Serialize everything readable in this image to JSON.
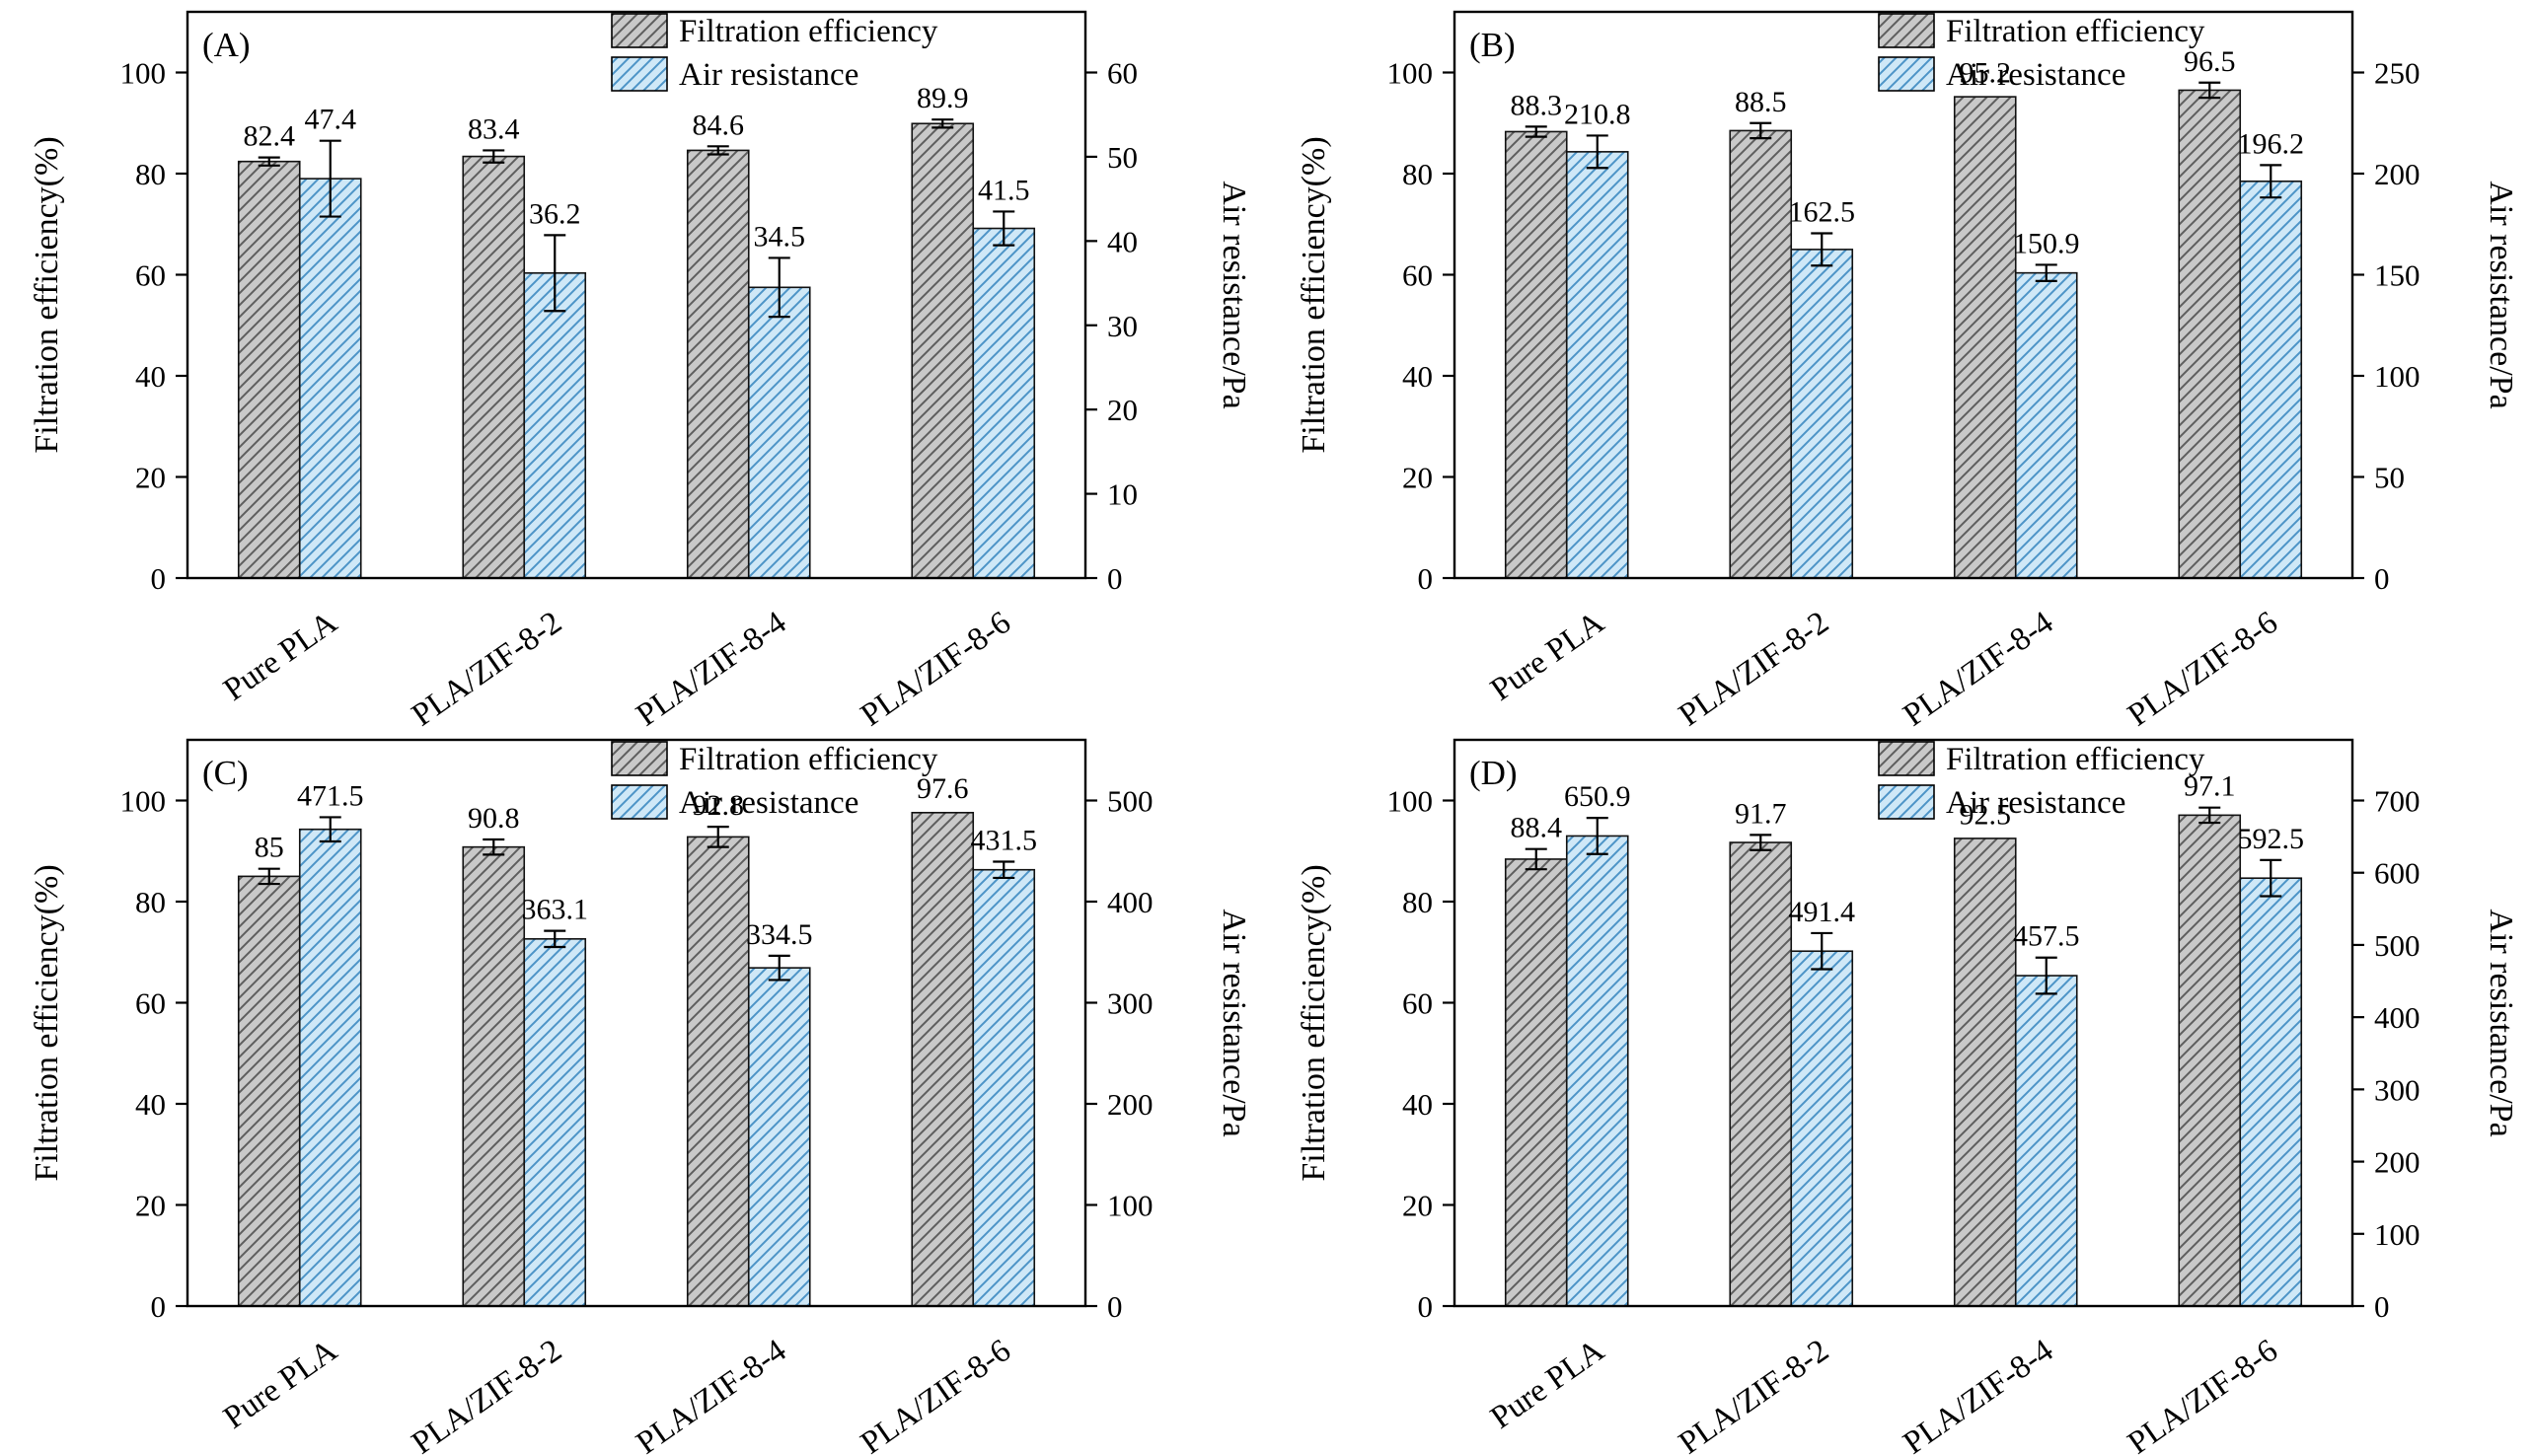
{
  "figure": {
    "background": "#ffffff"
  },
  "colors": {
    "filtration_fill": "#c9c9c9",
    "filtration_hatch": "#5e5e5e",
    "air_fill": "#cfe8f7",
    "air_hatch": "#4d94c7",
    "bar_stroke": "#111111",
    "axis": "#000000",
    "text": "#000000"
  },
  "chart_data": [
    {
      "type": "bar",
      "panel_label": "(A)",
      "categories": [
        "Pure PLA",
        "PLA/ZIF-8-2",
        "PLA/ZIF-8-4",
        "PLA/ZIF-8-6"
      ],
      "left_axis": {
        "label": "Filtration efficiency(%)",
        "ticks": [
          0,
          20,
          40,
          60,
          80,
          100
        ]
      },
      "right_axis": {
        "label": "Air resistance/Pa",
        "ticks": [
          0,
          10,
          20,
          30,
          40,
          50,
          60
        ]
      },
      "series": [
        {
          "name": "Filtration efficiency",
          "axis": "left",
          "values": [
            82.4,
            83.4,
            84.6,
            89.9
          ],
          "errors": [
            0.8,
            1.2,
            0.8,
            0.8
          ]
        },
        {
          "name": "Air resistance",
          "axis": "right",
          "values": [
            47.4,
            36.2,
            34.5,
            41.5
          ],
          "errors": [
            4.5,
            4.5,
            3.5,
            2
          ]
        }
      ]
    },
    {
      "type": "bar",
      "panel_label": "(B)",
      "categories": [
        "Pure PLA",
        "PLA/ZIF-8-2",
        "PLA/ZIF-8-4",
        "PLA/ZIF-8-6"
      ],
      "left_axis": {
        "label": "Filtration efficiency(%)",
        "ticks": [
          0,
          20,
          40,
          60,
          80,
          100
        ]
      },
      "right_axis": {
        "label": "Air resistance/Pa",
        "ticks": [
          0,
          50,
          100,
          150,
          200,
          250
        ]
      },
      "series": [
        {
          "name": "Filtration efficiency",
          "axis": "left",
          "values": [
            88.3,
            88.5,
            95.2,
            96.5
          ],
          "errors": [
            1.0,
            1.5,
            0.5,
            1.5
          ]
        },
        {
          "name": "Air resistance",
          "axis": "right",
          "values": [
            210.8,
            162.5,
            150.9,
            196.2
          ],
          "errors": [
            8,
            8,
            4,
            8
          ]
        }
      ]
    },
    {
      "type": "bar",
      "panel_label": "(C)",
      "categories": [
        "Pure PLA",
        "PLA/ZIF-8-2",
        "PLA/ZIF-8-4",
        "PLA/ZIF-8-6"
      ],
      "left_axis": {
        "label": "Filtration efficiency(%)",
        "ticks": [
          0,
          20,
          40,
          60,
          80,
          100
        ]
      },
      "right_axis": {
        "label": "Air resistance/Pa",
        "ticks": [
          0,
          100,
          200,
          300,
          400,
          500
        ]
      },
      "series": [
        {
          "name": "Filtration efficiency",
          "axis": "left",
          "values": [
            85,
            90.8,
            92.8,
            97.6
          ],
          "errors": [
            1.5,
            1.5,
            2,
            0.5
          ]
        },
        {
          "name": "Air resistance",
          "axis": "right",
          "values": [
            471.5,
            363.1,
            334.5,
            431.5
          ],
          "errors": [
            12,
            8,
            12,
            8
          ]
        }
      ]
    },
    {
      "type": "bar",
      "panel_label": "(D)",
      "categories": [
        "Pure PLA",
        "PLA/ZIF-8-2",
        "PLA/ZIF-8-4",
        "PLA/ZIF-8-6"
      ],
      "left_axis": {
        "label": "Filtration efficiency(%)",
        "ticks": [
          0,
          20,
          40,
          60,
          80,
          100
        ]
      },
      "right_axis": {
        "label": "Air resistance/Pa",
        "ticks": [
          0,
          100,
          200,
          300,
          400,
          500,
          600,
          700
        ]
      },
      "series": [
        {
          "name": "Filtration efficiency",
          "axis": "left",
          "values": [
            88.4,
            91.7,
            92.5,
            97.1
          ],
          "errors": [
            2,
            1.5,
            0.5,
            1.5
          ]
        },
        {
          "name": "Air resistance",
          "axis": "right",
          "values": [
            650.9,
            491.4,
            457.5,
            592.5
          ],
          "errors": [
            25,
            25,
            25,
            25
          ]
        }
      ]
    }
  ]
}
